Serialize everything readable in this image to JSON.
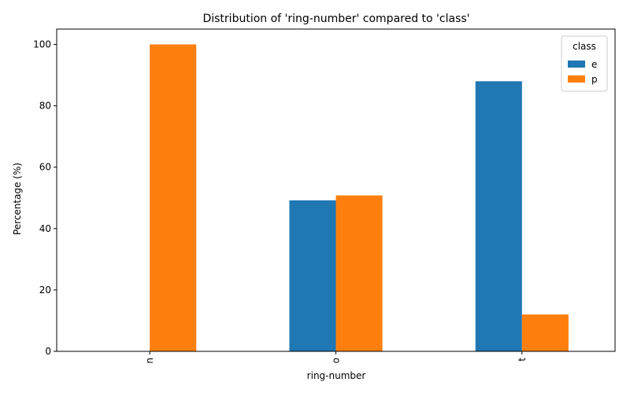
{
  "chart_data": {
    "type": "bar",
    "title": "Distribution of 'ring-number' compared to 'class'",
    "xlabel": "ring-number",
    "ylabel": "Percentage (%)",
    "categories": [
      "n",
      "o",
      "t"
    ],
    "series": [
      {
        "name": "e",
        "color": "#1f77b4",
        "values": [
          0,
          49.2,
          88.0
        ]
      },
      {
        "name": "p",
        "color": "#ff7f0e",
        "values": [
          100,
          50.8,
          12.0
        ]
      }
    ],
    "ylim": [
      0,
      105
    ],
    "yticks": [
      0,
      20,
      40,
      60,
      80,
      100
    ],
    "legend": {
      "title": "class",
      "position": "top-right"
    },
    "grid": false
  }
}
